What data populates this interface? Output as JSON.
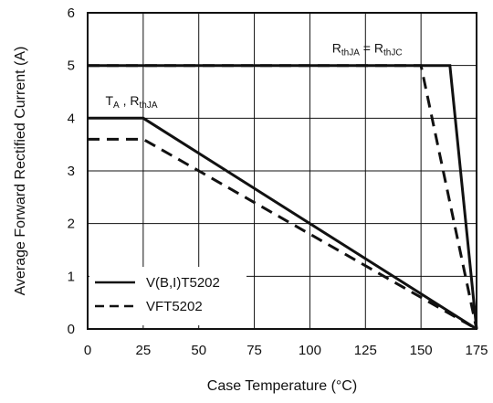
{
  "chart_data": {
    "type": "line",
    "xlabel": "Case Temperature (°C)",
    "ylabel": "Average Forward Rectified Current (A)",
    "xlim": [
      0,
      175
    ],
    "ylim": [
      0,
      6
    ],
    "xticks": [
      "0",
      "25",
      "50",
      "75",
      "100",
      "125",
      "150",
      "175"
    ],
    "yticks": [
      "0",
      "1",
      "2",
      "3",
      "4",
      "5",
      "6"
    ],
    "grid": true,
    "legend_position": "bottom-left",
    "series": [
      {
        "name": "V(B,I)T5202",
        "style": "solid",
        "group": "TA_RthJA",
        "x": [
          0,
          25,
          175
        ],
        "y": [
          4.0,
          4.0,
          0
        ]
      },
      {
        "name": "VFT5202",
        "style": "dashed",
        "group": "TA_RthJA",
        "x": [
          0,
          25,
          175
        ],
        "y": [
          3.6,
          3.6,
          0
        ]
      },
      {
        "name": "V(B,I)T5202",
        "style": "solid",
        "group": "RthJA_eq_RthJC",
        "x": [
          0,
          163,
          175
        ],
        "y": [
          5.0,
          5.0,
          0
        ]
      },
      {
        "name": "VFT5202",
        "style": "dashed",
        "group": "RthJA_eq_RthJC",
        "x": [
          0,
          150,
          175
        ],
        "y": [
          5.0,
          5.0,
          0
        ]
      }
    ],
    "legend": [
      {
        "label": "V(B,I)T5202",
        "style": "solid"
      },
      {
        "label": "VFT5202",
        "style": "dashed"
      }
    ],
    "annotations": [
      {
        "id": "ta",
        "parts": [
          "T",
          "A",
          " , R",
          "thJA"
        ],
        "x": 8,
        "y": 4.25
      },
      {
        "id": "rth",
        "parts": [
          "R",
          "thJA",
          " = R",
          "thJC"
        ],
        "x": 110,
        "y": 5.25
      }
    ],
    "colors": {
      "line": "#111111",
      "grid": "#111111",
      "axis": "#111111"
    }
  }
}
